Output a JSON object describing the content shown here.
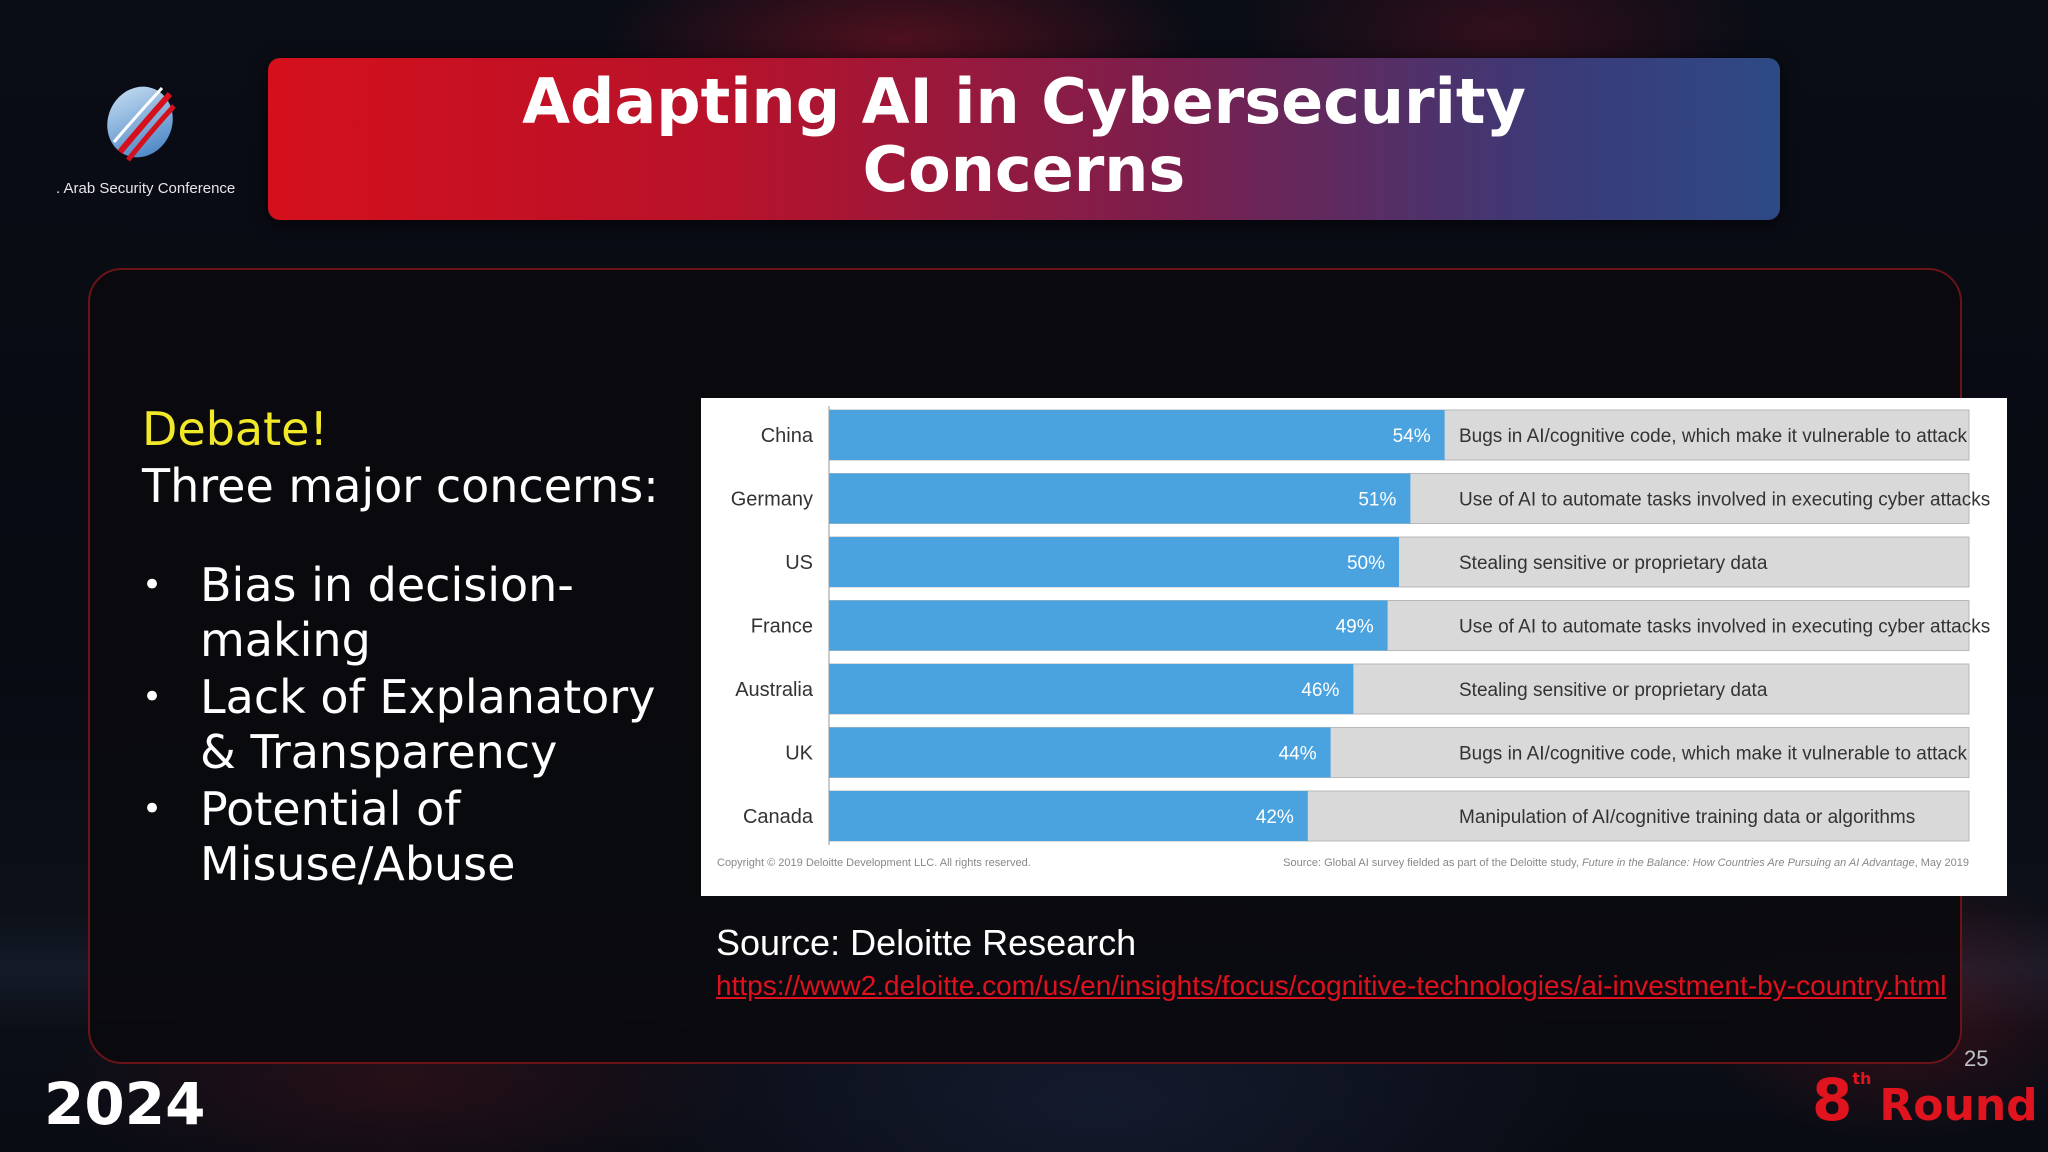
{
  "header": {
    "logo_text": "Arab Security Conference",
    "title_line1": "Adapting AI in Cybersecurity",
    "title_line2": "Concerns"
  },
  "left": {
    "debate": "Debate!",
    "concerns_title": "Three major concerns:",
    "concerns": [
      "Bias in decision-making",
      "Lack of Explanatory & Transparency",
      "Potential of Misuse/Abuse"
    ]
  },
  "chart_data": {
    "type": "bar",
    "orientation": "horizontal",
    "categories": [
      "China",
      "Germany",
      "US",
      "France",
      "Australia",
      "UK",
      "Canada"
    ],
    "values": [
      54,
      51,
      50,
      49,
      46,
      44,
      42
    ],
    "value_labels": [
      "54%",
      "51%",
      "50%",
      "49%",
      "46%",
      "44%",
      "42%"
    ],
    "annotations": [
      "Bugs in AI/cognitive code, which make it vulnerable to attack",
      "Use of AI to automate tasks involved in executing cyber attacks",
      "Stealing sensitive or proprietary data",
      "Use of AI to automate tasks involved in executing cyber attacks",
      "Stealing sensitive or proprietary data",
      "Bugs in AI/cognitive code, which make it vulnerable to attack",
      "Manipulation of AI/cognitive training data or algorithms"
    ],
    "xlim": [
      0,
      100
    ],
    "grid": false,
    "copyright": "Copyright © 2019 Deloitte Development LLC. All rights reserved.",
    "source_prefix": "Source: Global AI survey fielded as part of the Deloitte study, ",
    "source_italic": "Future in the Balance: How Countries Are Pursuing an AI Advantage",
    "source_suffix": ", May 2019",
    "colors": {
      "bar": "#4aa3df",
      "track": "#d9d9d9"
    }
  },
  "source": {
    "title": "Source: Deloitte Research",
    "url": "https://www2.deloitte.com/us/en/insights/focus/cognitive-technologies/ai-investment-by-country.html"
  },
  "footer": {
    "page_number": "25",
    "year": "2024",
    "round_number": "8",
    "round_suffix": "th",
    "round_word": "Round"
  }
}
